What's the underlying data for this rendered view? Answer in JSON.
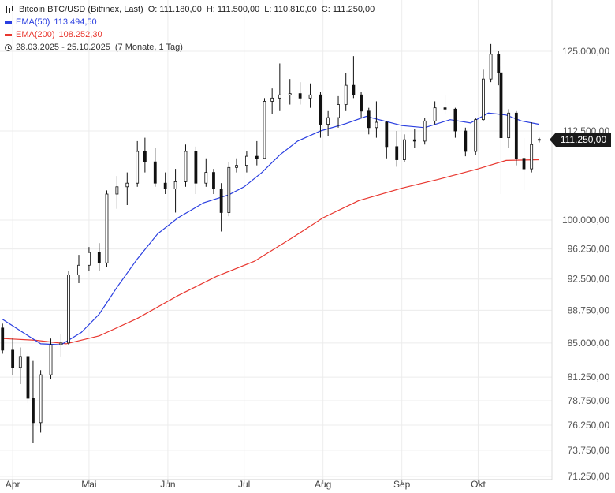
{
  "header": {
    "instrument": "Bitcoin BTC/USD (Bitfinex, Last)",
    "open": "O: 111.180,00",
    "high": "H: 111.500,00",
    "low": "L: 110.810,00",
    "close": "C: 111.250,00",
    "ema50_label": "EMA(50)",
    "ema50_value": "113.494,50",
    "ema200_label": "EMA(200)",
    "ema200_value": "108.252,30",
    "range": "28.03.2025 - 25.10.2025",
    "period": "(7 Monate, 1 Tag)"
  },
  "last_price": "111.250,00",
  "colors": {
    "ema50": "#2a3fe0",
    "ema200": "#e8372f",
    "candle": "#111111",
    "grid": "#ececec",
    "tag": "#1a1a1a"
  },
  "chart_data": {
    "type": "candlestick",
    "title": "Bitcoin BTC/USD (Bitfinex, Last)",
    "ylim": [
      71250,
      127000
    ],
    "y_scale": "log",
    "y_ticks": [
      125000,
      112500,
      100000,
      96250,
      92500,
      88750,
      85000,
      81250,
      78750,
      76250,
      73750,
      71250
    ],
    "y_tick_labels": [
      "125.000,00",
      "112.500,00",
      "100.000,00",
      "96.250,00",
      "92.500,00",
      "88.750,00",
      "85.000,00",
      "81.250,00",
      "78.750,00",
      "76.250,00",
      "73.750,00",
      "71.250,00"
    ],
    "x_labels": [
      "Apr",
      "Mai",
      "Jun",
      "Jul",
      "Aug",
      "Sep",
      "Okt"
    ],
    "x_label_dates": [
      "2025-04-01",
      "2025-05-01",
      "2025-06-01",
      "2025-07-01",
      "2025-08-01",
      "2025-09-01",
      "2025-10-01"
    ],
    "x_range": [
      "2025-03-28",
      "2025-10-25"
    ],
    "grid": true,
    "legend": "top-left",
    "series": [
      {
        "name": "EMA(50)",
        "type": "line",
        "color": "#2a3fe0",
        "points": [
          [
            "2025-03-28",
            87700
          ],
          [
            "2025-04-05",
            86200
          ],
          [
            "2025-04-12",
            84900
          ],
          [
            "2025-04-20",
            84800
          ],
          [
            "2025-04-28",
            86200
          ],
          [
            "2025-05-05",
            88300
          ],
          [
            "2025-05-12",
            91500
          ],
          [
            "2025-05-20",
            95000
          ],
          [
            "2025-05-28",
            98200
          ],
          [
            "2025-06-05",
            100300
          ],
          [
            "2025-06-15",
            102300
          ],
          [
            "2025-06-25",
            103400
          ],
          [
            "2025-07-01",
            104500
          ],
          [
            "2025-07-08",
            106500
          ],
          [
            "2025-07-15",
            109000
          ],
          [
            "2025-07-22",
            111000
          ],
          [
            "2025-07-31",
            112500
          ],
          [
            "2025-08-10",
            113600
          ],
          [
            "2025-08-18",
            114700
          ],
          [
            "2025-08-25",
            114000
          ],
          [
            "2025-09-01",
            113300
          ],
          [
            "2025-09-10",
            113000
          ],
          [
            "2025-09-20",
            114200
          ],
          [
            "2025-09-28",
            113700
          ],
          [
            "2025-10-05",
            115200
          ],
          [
            "2025-10-12",
            114900
          ],
          [
            "2025-10-18",
            114000
          ],
          [
            "2025-10-25",
            113500
          ]
        ]
      },
      {
        "name": "EMA(200)",
        "type": "line",
        "color": "#e8372f",
        "points": [
          [
            "2025-03-28",
            85500
          ],
          [
            "2025-04-10",
            85300
          ],
          [
            "2025-04-22",
            84900
          ],
          [
            "2025-05-05",
            85800
          ],
          [
            "2025-05-20",
            87800
          ],
          [
            "2025-06-05",
            90500
          ],
          [
            "2025-06-20",
            92800
          ],
          [
            "2025-07-05",
            94700
          ],
          [
            "2025-07-20",
            97700
          ],
          [
            "2025-08-01",
            100300
          ],
          [
            "2025-08-15",
            102600
          ],
          [
            "2025-09-01",
            104300
          ],
          [
            "2025-09-15",
            105500
          ],
          [
            "2025-10-01",
            107000
          ],
          [
            "2025-10-12",
            108200
          ],
          [
            "2025-10-25",
            108300
          ]
        ]
      },
      {
        "name": "Bitcoin BTC/USD",
        "type": "candles",
        "ohlc": [
          [
            "2025-03-28",
            86700,
            87200,
            83800,
            84200
          ],
          [
            "2025-04-01",
            84200,
            85500,
            81500,
            82300
          ],
          [
            "2025-04-04",
            82300,
            84500,
            80500,
            83500
          ],
          [
            "2025-04-07",
            83500,
            84000,
            78500,
            79000
          ],
          [
            "2025-04-09",
            79000,
            83000,
            74500,
            76500
          ],
          [
            "2025-04-12",
            76500,
            82000,
            75500,
            81500
          ],
          [
            "2025-04-16",
            81500,
            85500,
            81000,
            84800
          ],
          [
            "2025-04-20",
            84800,
            86000,
            83500,
            85000
          ],
          [
            "2025-04-23",
            85000,
            93500,
            84800,
            93000
          ],
          [
            "2025-04-27",
            93000,
            95500,
            92000,
            94200
          ],
          [
            "2025-05-01",
            94200,
            96500,
            93500,
            95800
          ],
          [
            "2025-05-05",
            95800,
            97000,
            93500,
            94500
          ],
          [
            "2025-05-08",
            94500,
            104000,
            94000,
            103500
          ],
          [
            "2025-05-12",
            103500,
            106000,
            101500,
            104500
          ],
          [
            "2025-05-16",
            104500,
            106500,
            102000,
            105000
          ],
          [
            "2025-05-20",
            105000,
            111000,
            104500,
            109500
          ],
          [
            "2025-05-23",
            109500,
            111500,
            106500,
            108000
          ],
          [
            "2025-05-27",
            108000,
            110000,
            104500,
            105000
          ],
          [
            "2025-05-31",
            105000,
            106500,
            103500,
            104200
          ],
          [
            "2025-06-04",
            104200,
            107000,
            101000,
            105200
          ],
          [
            "2025-06-08",
            105200,
            110500,
            104500,
            109500
          ],
          [
            "2025-06-12",
            109500,
            110200,
            103500,
            105000
          ],
          [
            "2025-06-16",
            105000,
            108500,
            104500,
            106500
          ],
          [
            "2025-06-19",
            106500,
            107000,
            103500,
            104200
          ],
          [
            "2025-06-22",
            104200,
            105000,
            98500,
            101000
          ],
          [
            "2025-06-25",
            101000,
            108000,
            100500,
            107200
          ],
          [
            "2025-06-28",
            107200,
            108500,
            106500,
            107500
          ],
          [
            "2025-07-02",
            107500,
            109500,
            106500,
            108800
          ],
          [
            "2025-07-06",
            108800,
            111000,
            107500,
            108500
          ],
          [
            "2025-07-09",
            108500,
            117500,
            108500,
            117000
          ],
          [
            "2025-07-12",
            117000,
            119000,
            115000,
            117500
          ],
          [
            "2025-07-15",
            117500,
            123000,
            115500,
            118000
          ],
          [
            "2025-07-19",
            118000,
            120500,
            116500,
            118200
          ],
          [
            "2025-07-23",
            118200,
            120000,
            116500,
            117500
          ],
          [
            "2025-07-27",
            117500,
            119800,
            116000,
            118000
          ],
          [
            "2025-07-31",
            118000,
            118500,
            111500,
            113500
          ],
          [
            "2025-08-03",
            113500,
            115500,
            111800,
            114500
          ],
          [
            "2025-08-07",
            114500,
            117800,
            113000,
            116500
          ],
          [
            "2025-08-10",
            116500,
            121500,
            115500,
            119500
          ],
          [
            "2025-08-13",
            119500,
            124200,
            117500,
            118000
          ],
          [
            "2025-08-16",
            118000,
            118500,
            114500,
            115500
          ],
          [
            "2025-08-19",
            115500,
            116000,
            112000,
            113000
          ],
          [
            "2025-08-22",
            113000,
            117000,
            111500,
            113800
          ],
          [
            "2025-08-26",
            113800,
            114000,
            108500,
            110200
          ],
          [
            "2025-08-30",
            110200,
            112500,
            107300,
            108300
          ],
          [
            "2025-09-02",
            108300,
            112000,
            108000,
            111200
          ],
          [
            "2025-09-06",
            111200,
            112800,
            110000,
            111000
          ],
          [
            "2025-09-10",
            111000,
            114500,
            110500,
            114000
          ],
          [
            "2025-09-14",
            114000,
            117000,
            113500,
            116000
          ],
          [
            "2025-09-18",
            116000,
            118000,
            115000,
            115800
          ],
          [
            "2025-09-22",
            115800,
            116000,
            111500,
            112500
          ],
          [
            "2025-09-26",
            112500,
            113000,
            108800,
            109500
          ],
          [
            "2025-09-30",
            109500,
            114500,
            109000,
            114200
          ],
          [
            "2025-10-03",
            114200,
            122000,
            114000,
            120500
          ],
          [
            "2025-10-06",
            120500,
            126200,
            120000,
            124500
          ],
          [
            "2025-10-09",
            124500,
            125000,
            119500,
            121500
          ],
          [
            "2025-10-10",
            121500,
            122500,
            103500,
            111500
          ],
          [
            "2025-10-13",
            111500,
            115800,
            110000,
            115200
          ],
          [
            "2025-10-16",
            115200,
            115500,
            107500,
            108500
          ],
          [
            "2025-10-19",
            108500,
            111500,
            104000,
            107000
          ],
          [
            "2025-10-22",
            107000,
            113800,
            106500,
            110500
          ],
          [
            "2025-10-25",
            111180,
            111500,
            110810,
            111250
          ]
        ]
      }
    ]
  }
}
